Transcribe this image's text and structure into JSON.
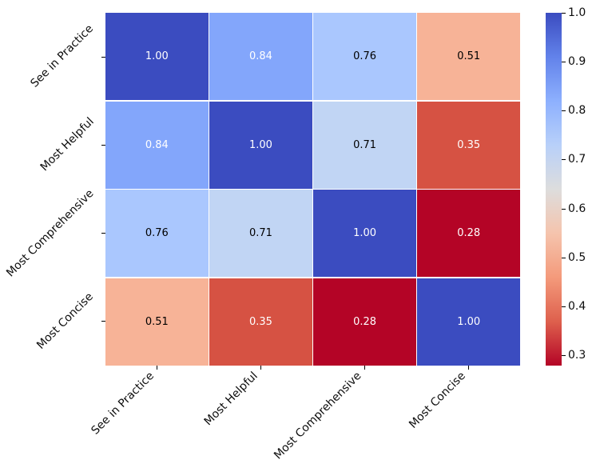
{
  "chart_data": {
    "type": "heatmap",
    "title": "",
    "xlabel": "",
    "ylabel": "",
    "categories": [
      "See in Practice",
      "Most Helpful",
      "Most Comprehensive",
      "Most Concise"
    ],
    "matrix": [
      [
        1.0,
        0.84,
        0.76,
        0.51
      ],
      [
        0.84,
        1.0,
        0.71,
        0.35
      ],
      [
        0.76,
        0.71,
        1.0,
        0.28
      ],
      [
        0.51,
        0.35,
        0.28,
        1.0
      ]
    ],
    "cell_labels": [
      [
        "1.00",
        "0.84",
        "0.76",
        "0.51"
      ],
      [
        "0.84",
        "1.00",
        "0.71",
        "0.35"
      ],
      [
        "0.76",
        "0.71",
        "1.00",
        "0.28"
      ],
      [
        "0.51",
        "0.35",
        "0.28",
        "1.00"
      ]
    ],
    "cell_colors": [
      [
        "#3b4cc0",
        "#83a6fb",
        "#aac7fe",
        "#f7b397"
      ],
      [
        "#83a6fb",
        "#3b4cc0",
        "#c1d5f4",
        "#d65243"
      ],
      [
        "#aac7fe",
        "#c1d5f4",
        "#3b4cc0",
        "#b40426"
      ],
      [
        "#f7b397",
        "#d65243",
        "#b40426",
        "#3b4cc0"
      ]
    ],
    "cell_text_colors": [
      [
        "#ffffff",
        "#ffffff",
        "#000000",
        "#000000"
      ],
      [
        "#ffffff",
        "#ffffff",
        "#000000",
        "#ffffff"
      ],
      [
        "#000000",
        "#000000",
        "#ffffff",
        "#ffffff"
      ],
      [
        "#000000",
        "#ffffff",
        "#ffffff",
        "#ffffff"
      ]
    ],
    "colormap": "coolwarm reversed (blue = high, red = low)",
    "vmin": 0.28,
    "vmax": 1.0,
    "grid_line_color": "#ffffff",
    "background_color": "#ffffff",
    "tick_color": "#000000",
    "label_rotation_deg": 45,
    "legend_position": "right colorbar",
    "colorbar": {
      "tick_values": [
        1.0,
        0.9,
        0.8,
        0.7,
        0.6,
        0.5,
        0.4,
        0.3
      ],
      "tick_labels": [
        "1.0",
        "0.9",
        "0.8",
        "0.7",
        "0.6",
        "0.5",
        "0.4",
        "0.3"
      ],
      "gradient_bottom_to_top": [
        "#b40426",
        "#de604d",
        "#f49a7b",
        "#f5c4ad",
        "#dddddd",
        "#b8d0f9",
        "#8db0fe",
        "#6282ea",
        "#3b4cc0"
      ]
    }
  }
}
